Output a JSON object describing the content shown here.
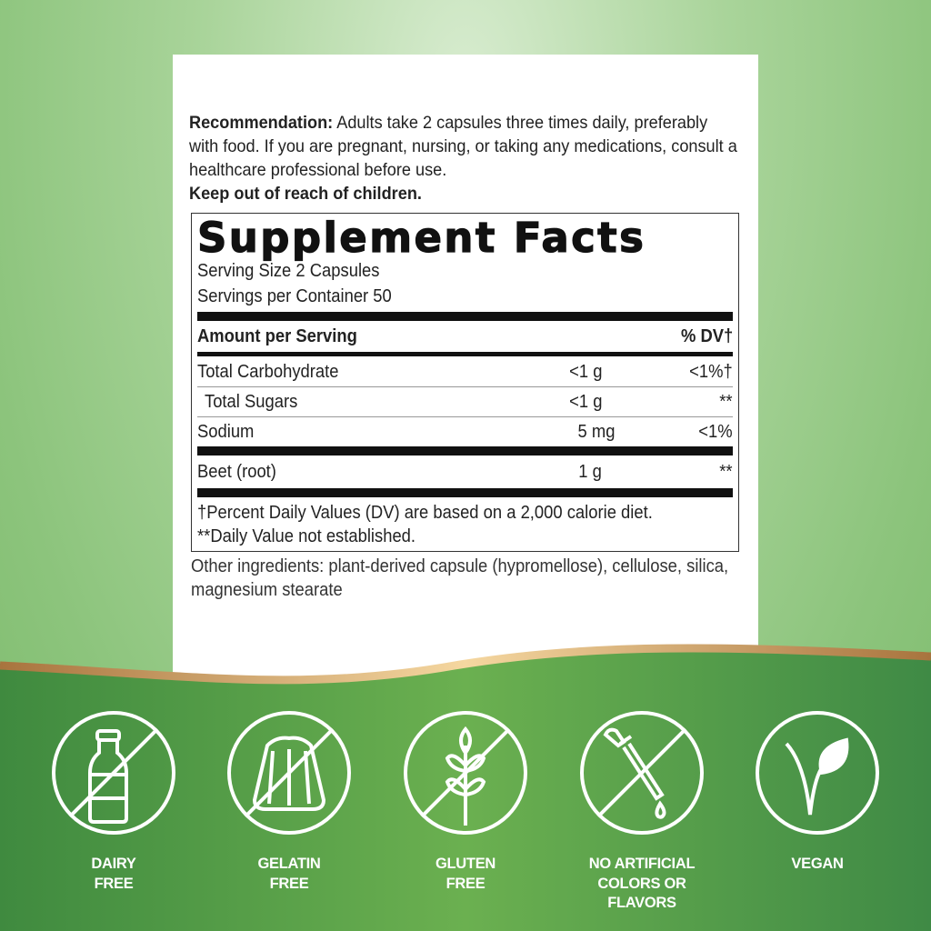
{
  "recommendation": {
    "label": "Recommendation:",
    "text": " Adults take 2 capsules three times daily, preferably with food. If you are pregnant, nursing, or taking any medications, consult a healthcare professional before use.",
    "warning": "Keep out of reach of children."
  },
  "facts": {
    "title": "Supplement Facts",
    "serving_size": "Serving Size 2 Capsules",
    "servings_per_container": "Servings per Container 50",
    "header": {
      "amount": "Amount per Serving",
      "dv": "% DV†"
    },
    "rows": [
      {
        "name": "Total Carbohydrate",
        "amount": "<1 g",
        "dv": "<1%†"
      },
      {
        "name": "Total Sugars",
        "amount": "<1 g",
        "dv": "**"
      },
      {
        "name": "Sodium",
        "amount": "5 mg",
        "dv": "<1%"
      },
      {
        "name": "Beet (root)",
        "amount": "1 g",
        "dv": "**"
      }
    ],
    "footnote1": "†Percent Daily Values (DV) are based on a 2,000 calorie diet.",
    "footnote2": "**Daily Value not established."
  },
  "other_ingredients": "Other ingredients: plant-derived capsule (hypromellose), cellulose, silica, magnesium stearate",
  "badges": [
    {
      "icon": "milk-bottle-crossed",
      "l1": "DAIRY",
      "l2": "FREE"
    },
    {
      "icon": "gelatin-mold-crossed",
      "l1": "GELATIN",
      "l2": "FREE"
    },
    {
      "icon": "wheat-crossed",
      "l1": "GLUTEN",
      "l2": "FREE"
    },
    {
      "icon": "dropper-crossed",
      "l1": "NO ARTIFICIAL",
      "l2": "COLORS OR",
      "l3": "FLAVORS"
    },
    {
      "icon": "leaf-sprout",
      "l1": "VEGAN"
    }
  ],
  "colors": {
    "band_green": "#4f9a4a",
    "gold": "#d8b27a",
    "background": "#a9d49a"
  }
}
